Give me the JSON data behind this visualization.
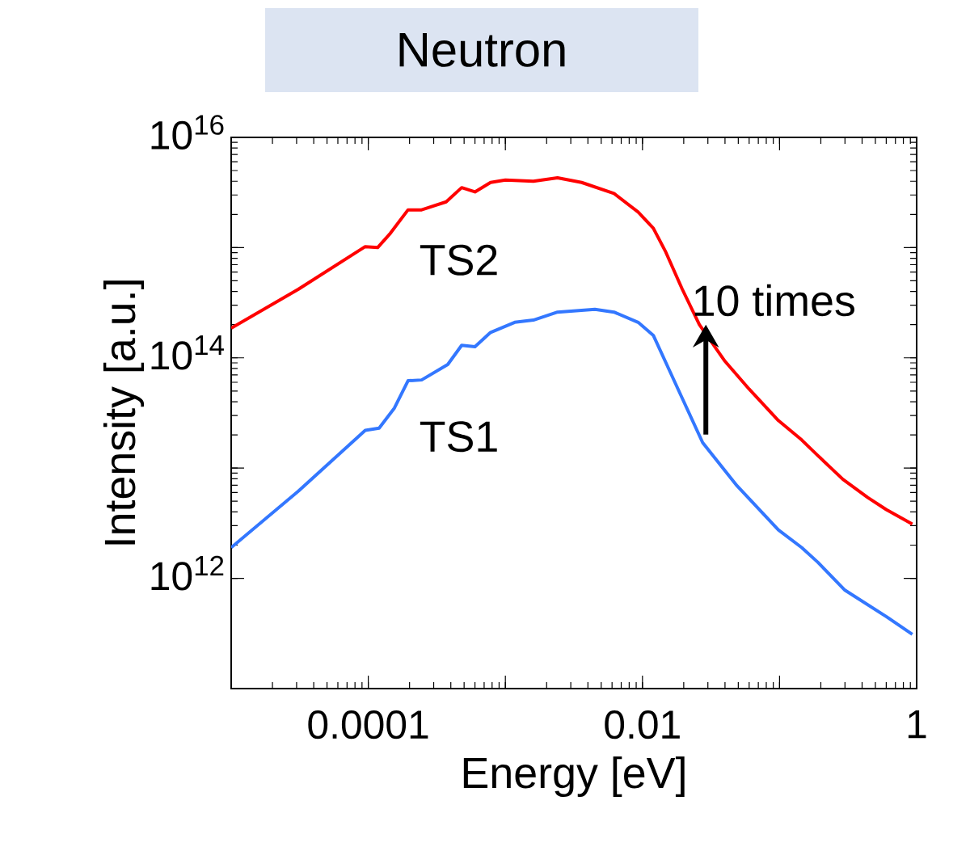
{
  "chart_data": {
    "type": "line",
    "title": "Neutron",
    "xlabel": "Energy [eV]",
    "ylabel": "Intensity [a.u.]",
    "log": "xy",
    "xlim": [
      1e-05,
      1
    ],
    "ylim": [
      100000000000.0,
      1e+16
    ],
    "xticks": [
      {
        "value": 1e-05,
        "label": null
      },
      {
        "value": 0.0001,
        "label": "0.0001"
      },
      {
        "value": 0.001,
        "label": null
      },
      {
        "value": 0.01,
        "label": "0.01"
      },
      {
        "value": 0.1,
        "label": null
      },
      {
        "value": 1,
        "label": "1"
      }
    ],
    "yticks": [
      {
        "value": 1000000000000.0,
        "label": "10$^{12}$"
      },
      {
        "value": 10000000000000.0,
        "label": null
      },
      {
        "value": 100000000000000.0,
        "label": "10$^{14}$"
      },
      {
        "value": 1000000000000000.0,
        "label": null
      },
      {
        "value": 1e+16,
        "label": "10$^{16}$"
      }
    ],
    "series": [
      {
        "name": "TS2",
        "color": "#ff0000",
        "x": [
          1e-05,
          3.1e-05,
          9.5e-05,
          0.000117,
          0.000145,
          0.000195,
          0.000245,
          0.00037,
          0.00048,
          0.0006,
          0.00078,
          0.001,
          0.0016,
          0.0024,
          0.0036,
          0.0062,
          0.0093,
          0.012,
          0.0148,
          0.0195,
          0.026,
          0.04,
          0.06,
          0.098,
          0.145,
          0.19,
          0.29,
          0.44,
          0.6,
          0.93
        ],
        "values": [
          186000000000000.0,
          420000000000000.0,
          1020000000000000.0,
          1000000000000000.0,
          1350000000000000.0,
          2200000000000000.0,
          2200000000000000.0,
          2600000000000000.0,
          3500000000000000.0,
          3200000000000000.0,
          3900000000000000.0,
          4100000000000000.0,
          4000000000000000.0,
          4300000000000000.0,
          3900000000000000.0,
          3100000000000000.0,
          2100000000000000.0,
          1500000000000000.0,
          910000000000000.0,
          420000000000000.0,
          200000000000000.0,
          93000000000000.0,
          52000000000000.0,
          27000000000000.0,
          18000000000000.0,
          13000000000000.0,
          7900000000000.0,
          5400000000000.0,
          4200000000000.0,
          3100000000000.0
        ]
      },
      {
        "name": "TS1",
        "color": "#3377ff",
        "x": [
          1e-05,
          3.1e-05,
          9.5e-05,
          0.00012,
          0.000155,
          0.000195,
          0.000245,
          0.00038,
          0.00048,
          0.0006,
          0.00078,
          0.00117,
          0.0016,
          0.0024,
          0.0045,
          0.0062,
          0.0093,
          0.012,
          0.0158,
          0.0195,
          0.0275,
          0.049,
          0.098,
          0.145,
          0.19,
          0.3,
          0.6,
          0.93
        ],
        "values": [
          1900000000000.0,
          6200000000000.0,
          22000000000000.0,
          23000000000000.0,
          35000000000000.0,
          62000000000000.0,
          63000000000000.0,
          87000000000000.0,
          130000000000000.0,
          126000000000000.0,
          170000000000000.0,
          210000000000000.0,
          220000000000000.0,
          260000000000000.0,
          275000000000000.0,
          260000000000000.0,
          210000000000000.0,
          160000000000000.0,
          76000000000000.0,
          43000000000000.0,
          17000000000000.0,
          6900000000000.0,
          2750000000000.0,
          1900000000000.0,
          1400000000000.0,
          780000000000.0,
          450000000000.0,
          310000000000.0
        ]
      }
    ],
    "annotations": [
      {
        "text": "10 times",
        "x": 0.029,
        "y": 200000000000000.0
      }
    ]
  }
}
